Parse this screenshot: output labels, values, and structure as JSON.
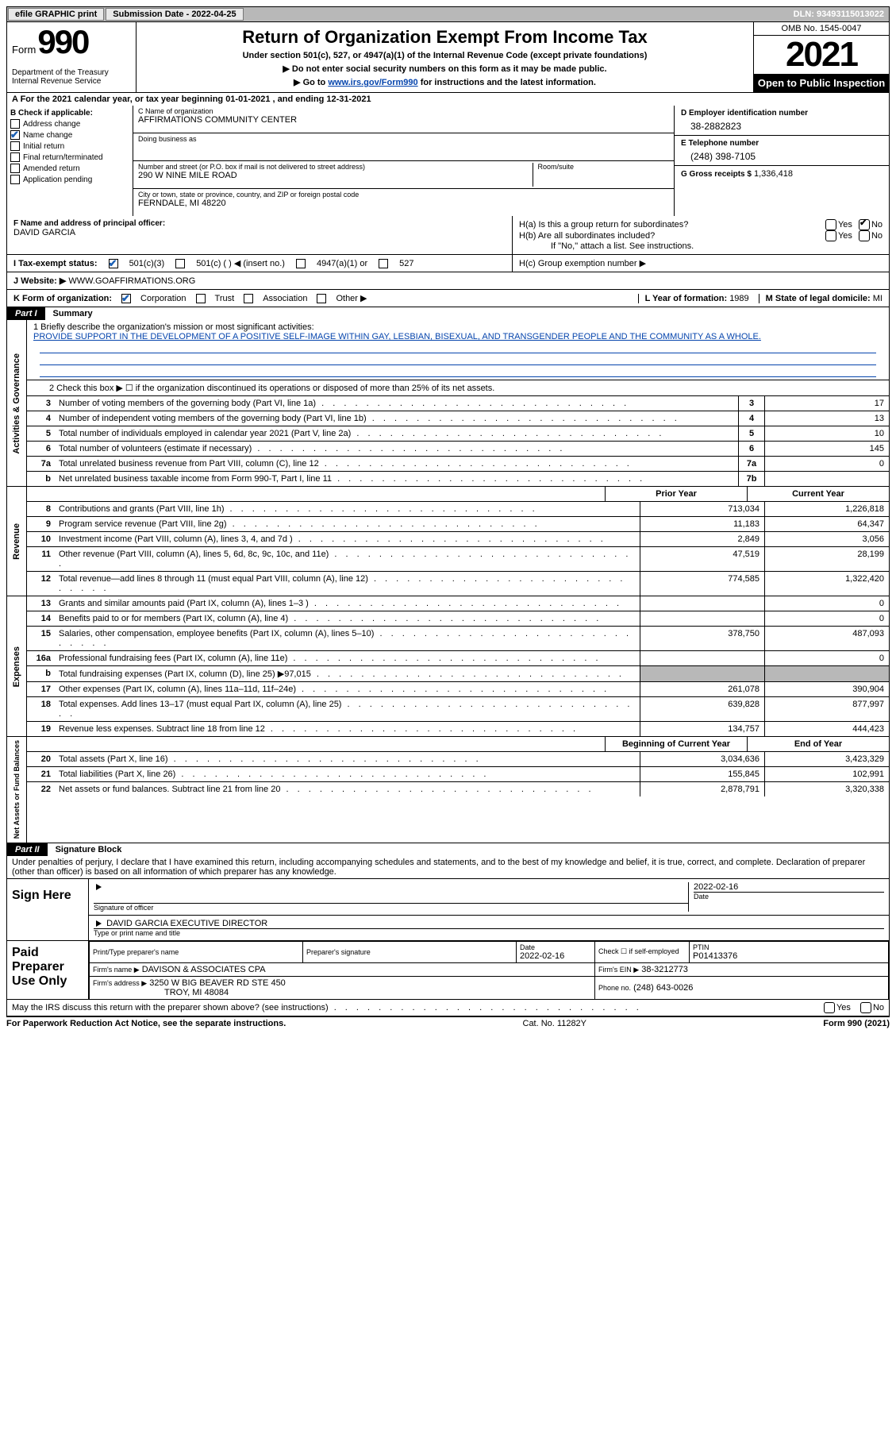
{
  "topbar": {
    "efile": "efile GRAPHIC print",
    "sub_label": "Submission Date - 2022-04-25",
    "dln": "DLN: 93493115013022"
  },
  "header": {
    "form_word": "Form",
    "form_num": "990",
    "dept": "Department of the Treasury\nInternal Revenue Service",
    "title": "Return of Organization Exempt From Income Tax",
    "sub": "Under section 501(c), 527, or 4947(a)(1) of the Internal Revenue Code (except private foundations)",
    "sub2a": "▶ Do not enter social security numbers on this form as it may be made public.",
    "sub2b_pre": "▶ Go to ",
    "sub2b_link": "www.irs.gov/Form990",
    "sub2b_post": " for instructions and the latest information.",
    "omb": "OMB No. 1545-0047",
    "year": "2021",
    "opi": "Open to Public Inspection"
  },
  "A": "A For the 2021 calendar year, or tax year beginning 01-01-2021    , and ending 12-31-2021",
  "B": {
    "title": "B Check if applicable:",
    "items": [
      "Address change",
      "Name change",
      "Initial return",
      "Final return/terminated",
      "Amended return",
      "Application pending"
    ],
    "checked_idx": 1
  },
  "C": {
    "name_lbl": "C Name of organization",
    "name": "AFFIRMATIONS COMMUNITY CENTER",
    "dba_lbl": "Doing business as",
    "addr_lbl": "Number and street (or P.O. box if mail is not delivered to street address)",
    "room_lbl": "Room/suite",
    "addr": "290 W NINE MILE ROAD",
    "city_lbl": "City or town, state or province, country, and ZIP or foreign postal code",
    "city": "FERNDALE, MI  48220"
  },
  "D": {
    "lbl": "D Employer identification number",
    "val": "38-2882823"
  },
  "E": {
    "lbl": "E Telephone number",
    "val": "(248) 398-7105"
  },
  "G": {
    "lbl": "G Gross receipts $",
    "val": "1,336,418"
  },
  "F": {
    "lbl": "F  Name and address of principal officer:",
    "val": "DAVID GARCIA"
  },
  "H": {
    "a": "H(a)  Is this a group return for subordinates?",
    "b": "H(b)  Are all subordinates included?",
    "bnote": "If \"No,\" attach a list. See instructions.",
    "c": "H(c)  Group exemption number ▶",
    "yes": "Yes",
    "no": "No"
  },
  "I": {
    "lbl": "I    Tax-exempt status:",
    "o1": "501(c)(3)",
    "o2": "501(c) (  ) ◀ (insert no.)",
    "o3": "4947(a)(1) or",
    "o4": "527"
  },
  "J": {
    "lbl": "J   Website: ▶",
    "val": "WWW.GOAFFIRMATIONS.ORG"
  },
  "K": {
    "lbl": "K Form of organization:",
    "o1": "Corporation",
    "o2": "Trust",
    "o3": "Association",
    "o4": "Other ▶"
  },
  "L": {
    "lbl": "L Year of formation:",
    "val": "1989"
  },
  "M": {
    "lbl": "M State of legal domicile:",
    "val": "MI"
  },
  "part1": {
    "title": "Part I",
    "label": "Summary"
  },
  "mission": {
    "lbl": "1   Briefly describe the organization's mission or most significant activities:",
    "text": "PROVIDE SUPPORT IN THE DEVELOPMENT OF A POSITIVE SELF-IMAGE WITHIN GAY, LESBIAN, BISEXUAL, AND TRANSGENDER PEOPLE AND THE COMMUNITY AS A WHOLE."
  },
  "line2": "2    Check this box ▶ ☐ if the organization discontinued its operations or disposed of more than 25% of its net assets.",
  "ag_rows": [
    {
      "n": "3",
      "t": "Number of voting members of the governing body (Part VI, line 1a)",
      "box": "3",
      "v": "17"
    },
    {
      "n": "4",
      "t": "Number of independent voting members of the governing body (Part VI, line 1b)",
      "box": "4",
      "v": "13"
    },
    {
      "n": "5",
      "t": "Total number of individuals employed in calendar year 2021 (Part V, line 2a)",
      "box": "5",
      "v": "10"
    },
    {
      "n": "6",
      "t": "Total number of volunteers (estimate if necessary)",
      "box": "6",
      "v": "145"
    },
    {
      "n": "7a",
      "t": "Total unrelated business revenue from Part VIII, column (C), line 12",
      "box": "7a",
      "v": "0"
    },
    {
      "n": "b",
      "t": "Net unrelated business taxable income from Form 990-T, Part I, line 11",
      "box": "7b",
      "v": ""
    }
  ],
  "pycy": {
    "py": "Prior Year",
    "cy": "Current Year"
  },
  "rev_rows": [
    {
      "n": "8",
      "t": "Contributions and grants (Part VIII, line 1h)",
      "py": "713,034",
      "cy": "1,226,818"
    },
    {
      "n": "9",
      "t": "Program service revenue (Part VIII, line 2g)",
      "py": "11,183",
      "cy": "64,347"
    },
    {
      "n": "10",
      "t": "Investment income (Part VIII, column (A), lines 3, 4, and 7d )",
      "py": "2,849",
      "cy": "3,056"
    },
    {
      "n": "11",
      "t": "Other revenue (Part VIII, column (A), lines 5, 6d, 8c, 9c, 10c, and 11e)",
      "py": "47,519",
      "cy": "28,199"
    },
    {
      "n": "12",
      "t": "Total revenue—add lines 8 through 11 (must equal Part VIII, column (A), line 12)",
      "py": "774,585",
      "cy": "1,322,420"
    }
  ],
  "exp_rows": [
    {
      "n": "13",
      "t": "Grants and similar amounts paid (Part IX, column (A), lines 1–3 )",
      "py": "",
      "cy": "0"
    },
    {
      "n": "14",
      "t": "Benefits paid to or for members (Part IX, column (A), line 4)",
      "py": "",
      "cy": "0"
    },
    {
      "n": "15",
      "t": "Salaries, other compensation, employee benefits (Part IX, column (A), lines 5–10)",
      "py": "378,750",
      "cy": "487,093"
    },
    {
      "n": "16a",
      "t": "Professional fundraising fees (Part IX, column (A), line 11e)",
      "py": "",
      "cy": "0"
    },
    {
      "n": "b",
      "t": "Total fundraising expenses (Part IX, column (D), line 25) ▶97,015",
      "py": "",
      "cy": "",
      "gray": true
    },
    {
      "n": "17",
      "t": "Other expenses (Part IX, column (A), lines 11a–11d, 11f–24e)",
      "py": "261,078",
      "cy": "390,904"
    },
    {
      "n": "18",
      "t": "Total expenses. Add lines 13–17 (must equal Part IX, column (A), line 25)",
      "py": "639,828",
      "cy": "877,997"
    },
    {
      "n": "19",
      "t": "Revenue less expenses. Subtract line 18 from line 12",
      "py": "134,757",
      "cy": "444,423"
    }
  ],
  "nacy": {
    "b": "Beginning of Current Year",
    "e": "End of Year"
  },
  "na_rows": [
    {
      "n": "20",
      "t": "Total assets (Part X, line 16)",
      "py": "3,034,636",
      "cy": "3,423,329"
    },
    {
      "n": "21",
      "t": "Total liabilities (Part X, line 26)",
      "py": "155,845",
      "cy": "102,991"
    },
    {
      "n": "22",
      "t": "Net assets or fund balances. Subtract line 21 from line 20",
      "py": "2,878,791",
      "cy": "3,320,338"
    }
  ],
  "sections": {
    "ag": "Activities & Governance",
    "rev": "Revenue",
    "exp": "Expenses",
    "na": "Net Assets or Fund Balances"
  },
  "part2": {
    "title": "Part II",
    "label": "Signature Block"
  },
  "perjury": "Under penalties of perjury, I declare that I have examined this return, including accompanying schedules and statements, and to the best of my knowledge and belief, it is true, correct, and complete. Declaration of preparer (other than officer) is based on all information of which preparer has any knowledge.",
  "sign": {
    "here": "Sign Here",
    "sigoff": "Signature of officer",
    "date": "2022-02-16",
    "name": "DAVID GARCIA  EXECUTIVE DIRECTOR",
    "nametype": "Type or print name and title"
  },
  "paid": {
    "title": "Paid Preparer Use Only",
    "c1": "Print/Type preparer's name",
    "c2": "Preparer's signature",
    "c3": "Date",
    "c3v": "2022-02-16",
    "c4": "Check ☐ if self-employed",
    "c5": "PTIN",
    "c5v": "P01413376",
    "firm_lbl": "Firm's name    ▶",
    "firm": "DAVISON & ASSOCIATES CPA",
    "ein_lbl": "Firm's EIN ▶",
    "ein": "38-3212773",
    "addr_lbl": "Firm's address ▶",
    "addr1": "3250 W BIG BEAVER RD STE 450",
    "addr2": "TROY, MI  48084",
    "phone_lbl": "Phone no.",
    "phone": "(248) 643-0026"
  },
  "discuss": "May the IRS discuss this return with the preparer shown above? (see instructions)",
  "footer": {
    "l": "For Paperwork Reduction Act Notice, see the separate instructions.",
    "m": "Cat. No. 11282Y",
    "r": "Form 990 (2021)"
  }
}
